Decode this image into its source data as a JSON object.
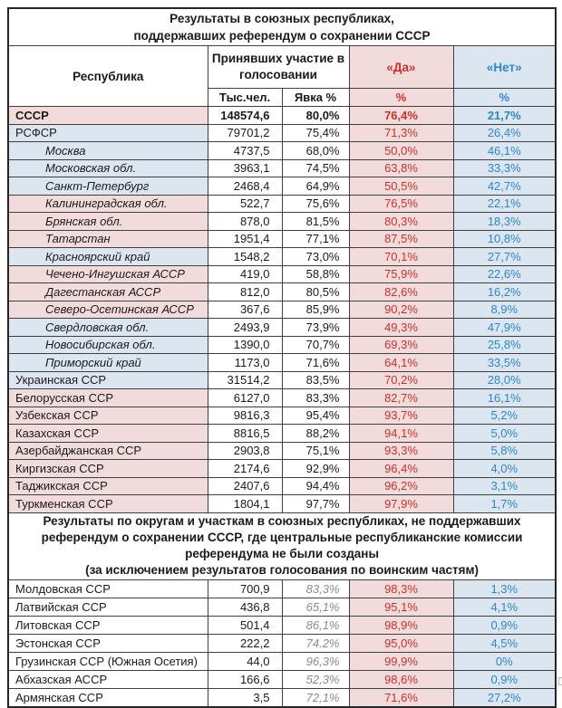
{
  "colors": {
    "pink_bg": "#f2dcdb",
    "blue_bg": "#dce6f1",
    "yes_text_red": "#c9302c",
    "no_text_blue": "#2e86c6",
    "muted_gray": "#8a8a8a"
  },
  "document": {
    "section1": {
      "title": [
        "Результаты в союзных республиках,",
        "поддержавших референдум о сохранении СССР"
      ],
      "columns": {
        "republic": "Республика",
        "participated": "Принявших участие в голосовании",
        "yes": "«Да»",
        "no": "«Нет»",
        "thousands": "Тыс.чел.",
        "turnout": "Явка %",
        "pct_yes": "%",
        "pct_no": "%"
      },
      "rows": [
        {
          "name": "СССР",
          "thousands": "148574,6",
          "turnout": "80,0%",
          "yes": "76,4%",
          "no": "21,7%",
          "bg": "pink",
          "emphasis": "bold",
          "indent": false
        },
        {
          "name": "РСФСР",
          "thousands": "79701,2",
          "turnout": "75,4%",
          "yes": "71,3%",
          "no": "26,4%",
          "bg": "blue",
          "emphasis": "normal",
          "indent": false
        },
        {
          "name": "Москва",
          "thousands": "4737,5",
          "turnout": "68,0%",
          "yes": "50,0%",
          "no": "46,1%",
          "bg": "blue",
          "emphasis": "normal",
          "indent": true
        },
        {
          "name": "Московская обл.",
          "thousands": "3963,1",
          "turnout": "74,5%",
          "yes": "63,8%",
          "no": "33,3%",
          "bg": "blue",
          "emphasis": "normal",
          "indent": true
        },
        {
          "name": "Санкт-Петербург",
          "thousands": "2468,4",
          "turnout": "64,9%",
          "yes": "50,5%",
          "no": "42,7%",
          "bg": "blue",
          "emphasis": "normal",
          "indent": true
        },
        {
          "name": "Калининградская обл.",
          "thousands": "522,7",
          "turnout": "75,6%",
          "yes": "76,5%",
          "no": "22,1%",
          "bg": "pink",
          "emphasis": "normal",
          "indent": true
        },
        {
          "name": "Брянская обл.",
          "thousands": "878,0",
          "turnout": "81,5%",
          "yes": "80,3%",
          "no": "18,3%",
          "bg": "pink",
          "emphasis": "normal",
          "indent": true
        },
        {
          "name": "Татарстан",
          "thousands": "1951,4",
          "turnout": "77,1%",
          "yes": "87,5%",
          "no": "10,8%",
          "bg": "pink",
          "emphasis": "normal",
          "indent": true
        },
        {
          "name": "Красноярский край",
          "thousands": "1548,2",
          "turnout": "73,0%",
          "yes": "70,1%",
          "no": "27,7%",
          "bg": "blue",
          "emphasis": "normal",
          "indent": true
        },
        {
          "name": "Чечено-Ингушская АССР",
          "thousands": "419,0",
          "turnout": "58,8%",
          "yes": "75,9%",
          "no": "22,6%",
          "bg": "pink",
          "emphasis": "normal",
          "indent": true
        },
        {
          "name": "Дагестанская АССР",
          "thousands": "812,0",
          "turnout": "80,5%",
          "yes": "82,6%",
          "no": "16,2%",
          "bg": "pink",
          "emphasis": "normal",
          "indent": true
        },
        {
          "name": "Северо-Осетинская АССР",
          "thousands": "367,6",
          "turnout": "85,9%",
          "yes": "90,2%",
          "no": "8,9%",
          "bg": "pink",
          "emphasis": "normal",
          "indent": true
        },
        {
          "name": "Свердловская обл.",
          "thousands": "2493,9",
          "turnout": "73,9%",
          "yes": "49,3%",
          "no": "47,9%",
          "bg": "blue",
          "emphasis": "normal",
          "indent": true
        },
        {
          "name": "Новосибирская обл.",
          "thousands": "1390,0",
          "turnout": "70,7%",
          "yes": "69,3%",
          "no": "25,8%",
          "bg": "blue",
          "emphasis": "normal",
          "indent": true
        },
        {
          "name": "Приморский край",
          "thousands": "1173,0",
          "turnout": "71,6%",
          "yes": "64,1%",
          "no": "33,5%",
          "bg": "blue",
          "emphasis": "normal",
          "indent": true
        },
        {
          "name": "Украинская ССР",
          "thousands": "31514,2",
          "turnout": "83,5%",
          "yes": "70,2%",
          "no": "28,0%",
          "bg": "blue",
          "emphasis": "normal",
          "indent": false
        },
        {
          "name": "Белорусская ССР",
          "thousands": "6127,0",
          "turnout": "83,3%",
          "yes": "82,7%",
          "no": "16,1%",
          "bg": "pink",
          "emphasis": "normal",
          "indent": false
        },
        {
          "name": "Узбекская ССР",
          "thousands": "9816,3",
          "turnout": "95,4%",
          "yes": "93,7%",
          "no": "5,2%",
          "bg": "pink",
          "emphasis": "normal",
          "indent": false
        },
        {
          "name": "Казахская ССР",
          "thousands": "8816,5",
          "turnout": "88,2%",
          "yes": "94,1%",
          "no": "5,0%",
          "bg": "pink",
          "emphasis": "normal",
          "indent": false
        },
        {
          "name": "Азербайджанская ССР",
          "thousands": "2903,8",
          "turnout": "75,1%",
          "yes": "93,3%",
          "no": "5,8%",
          "bg": "pink",
          "emphasis": "normal",
          "indent": false
        },
        {
          "name": "Киргизская ССР",
          "thousands": "2174,6",
          "turnout": "92,9%",
          "yes": "96,4%",
          "no": "4,0%",
          "bg": "pink",
          "emphasis": "normal",
          "indent": false
        },
        {
          "name": "Таджикская ССР",
          "thousands": "2407,6",
          "turnout": "94,4%",
          "yes": "96,2%",
          "no": "3,1%",
          "bg": "pink",
          "emphasis": "normal",
          "indent": false
        },
        {
          "name": "Туркменская ССР",
          "thousands": "1804,1",
          "turnout": "97,7%",
          "yes": "97,9%",
          "no": "1,7%",
          "bg": "pink",
          "emphasis": "normal",
          "indent": false
        }
      ]
    },
    "section2": {
      "title": [
        "Результаты по округам и участкам в союзных республиках, не поддержавших",
        "референдум о сохранении СССР, где центральные республиканские  комиссии",
        "референдума не были созданы",
        "(за исключением результатов голосования по воинским частям)"
      ],
      "rows": [
        {
          "name": "Молдовская ССР",
          "thousands": "700,9",
          "turnout": "83,3%",
          "yes": "98,3%",
          "no": "1,3%",
          "bg": "white",
          "emphasis": "normal",
          "indent": false
        },
        {
          "name": "Латвийская ССР",
          "thousands": "436,8",
          "turnout": "65,1%",
          "yes": "95,1%",
          "no": "4,1%",
          "bg": "white",
          "emphasis": "normal",
          "indent": false
        },
        {
          "name": "Литовская ССР",
          "thousands": "501,4",
          "turnout": "86,1%",
          "yes": "98,9%",
          "no": "0,9%",
          "bg": "white",
          "emphasis": "normal",
          "indent": false
        },
        {
          "name": "Эстонская ССР",
          "thousands": "222,2",
          "turnout": "74.2%",
          "yes": "95,0%",
          "no": "4,5%",
          "bg": "white",
          "emphasis": "normal",
          "indent": false
        },
        {
          "name": "Грузинская ССР (Южная Осетия)",
          "thousands": "44,0",
          "turnout": "96,3%",
          "yes": "99,9%",
          "no": "0%",
          "bg": "white",
          "emphasis": "normal",
          "indent": false
        },
        {
          "name": "Абхазская АССР",
          "thousands": "166,6",
          "turnout": "52,3%",
          "yes": "98,6%",
          "no": "0,9%",
          "bg": "white",
          "emphasis": "normal",
          "indent": false
        },
        {
          "name": "Армянская ССР",
          "thousands": "3,5",
          "turnout": "72,1%",
          "yes": "71,6%",
          "no": "27,2%",
          "bg": "white",
          "emphasis": "normal",
          "indent": false
        }
      ]
    }
  }
}
